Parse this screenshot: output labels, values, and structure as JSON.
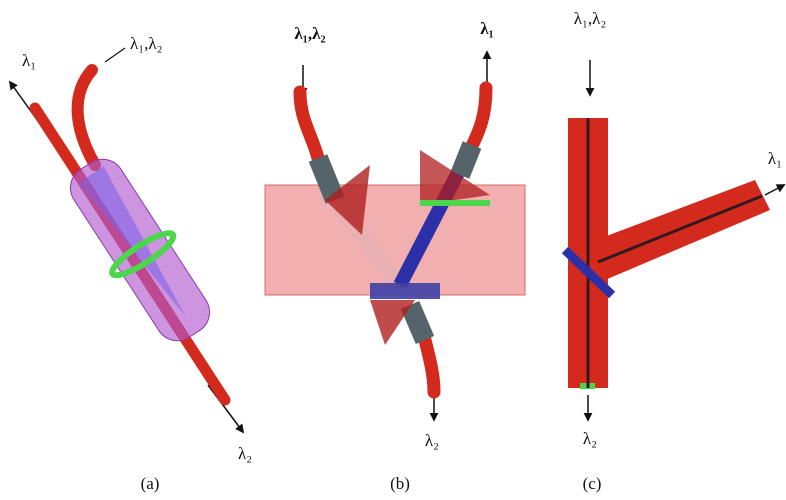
{
  "panels": [
    {
      "caption": "(a)",
      "labels": [
        "λ₁",
        "λ₁,λ₂",
        "λ₂"
      ]
    },
    {
      "caption": "(b)",
      "labels": [
        "λ₁,λ₂",
        "λ₁",
        "λ₂"
      ]
    },
    {
      "caption": "(c)",
      "labels": [
        "λ₁,λ₂",
        "λ₁",
        "λ₂"
      ]
    }
  ]
}
